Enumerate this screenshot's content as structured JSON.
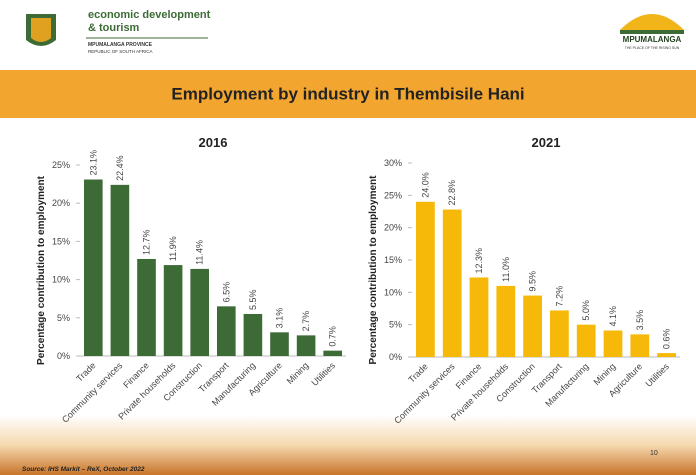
{
  "header": {
    "org_line1": "economic development",
    "org_line2": "& tourism",
    "province": "MPUMALANGA PROVINCE",
    "republic": "REPUBLIC OF SOUTH AFRICA",
    "brand": "MPUMALANGA",
    "tagline": "THE PLACE OF THE RISING SUN"
  },
  "banner": {
    "title": "Employment by industry in Thembisile Hani"
  },
  "footer": {
    "source": "Source: IHS Markit – ReX, October 2022",
    "page": "10"
  },
  "chart_data": [
    {
      "type": "bar",
      "title": "2016",
      "y_label": "Percentage contribution to employment",
      "color": "#3d6b36",
      "categories": [
        "Trade",
        "Community services",
        "Finance",
        "Private households",
        "Construction",
        "Transport",
        "Manufacturing",
        "Agriculture",
        "Mining",
        "Utilities"
      ],
      "values": [
        23.1,
        22.4,
        12.7,
        11.9,
        11.4,
        6.5,
        5.5,
        3.1,
        2.7,
        0.7
      ],
      "value_labels": [
        "23.1%",
        "22.4%",
        "12.7%",
        "11.9%",
        "11.4%",
        "6.5%",
        "5.5%",
        "3.1%",
        "2.7%",
        "0.7%"
      ],
      "ylim": [
        0,
        25
      ],
      "yticks": [
        {
          "value": 0,
          "label": "0%"
        },
        {
          "value": 5,
          "label": "5%"
        },
        {
          "value": 10,
          "label": "10%"
        },
        {
          "value": 15,
          "label": "15%"
        },
        {
          "value": 20,
          "label": "20%"
        },
        {
          "value": 25,
          "label": "25%"
        }
      ]
    },
    {
      "type": "bar",
      "title": "2021",
      "y_label": "Percentage contribution to employment",
      "color": "#f6b90a",
      "categories": [
        "Trade",
        "Community services",
        "Finance",
        "Private households",
        "Construction",
        "Transport",
        "Manufacturing",
        "Mining",
        "Agriculture",
        "Utilities"
      ],
      "values": [
        24.0,
        22.8,
        12.3,
        11.0,
        9.5,
        7.2,
        5.0,
        4.1,
        3.5,
        0.6
      ],
      "value_labels": [
        "24.0%",
        "22.8%",
        "12.3%",
        "11.0%",
        "9.5%",
        "7.2%",
        "5.0%",
        "4.1%",
        "3.5%",
        "0.6%"
      ],
      "ylim": [
        0,
        30
      ],
      "yticks": [
        {
          "value": 0,
          "label": "0%"
        },
        {
          "value": 5,
          "label": "5%"
        },
        {
          "value": 10,
          "label": "10%"
        },
        {
          "value": 15,
          "label": "15%"
        },
        {
          "value": 20,
          "label": "20%"
        },
        {
          "value": 25,
          "label": "25%"
        },
        {
          "value": 30,
          "label": "30%"
        }
      ]
    }
  ]
}
